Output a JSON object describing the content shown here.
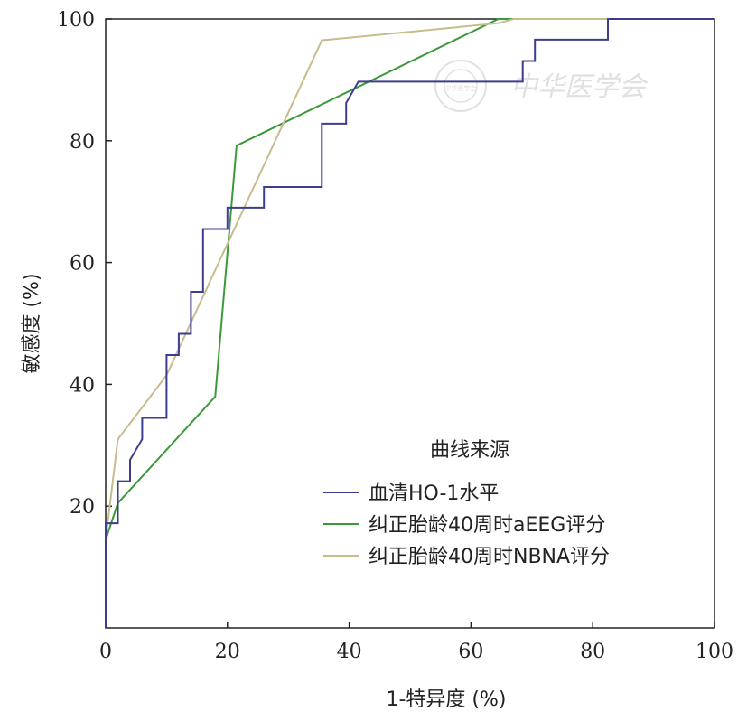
{
  "chart_data": {
    "type": "line",
    "title": "",
    "xlabel": "1-特异度 (%)",
    "ylabel": "敏感度 (%)",
    "xlim": [
      0,
      100
    ],
    "ylim": [
      0,
      100
    ],
    "x_ticks": [
      "0",
      "20",
      "40",
      "60",
      "80",
      "100"
    ],
    "y_ticks": [
      "20",
      "40",
      "60",
      "80",
      "100"
    ],
    "grid": false,
    "legend": {
      "title": "曲线来源",
      "position": "bottom-right"
    },
    "series": [
      {
        "name": "血清HO-1水平",
        "color": "#3d3d8f",
        "step": true,
        "points": [
          [
            0,
            0
          ],
          [
            0,
            17.2
          ],
          [
            2,
            17.2
          ],
          [
            2,
            24.1
          ],
          [
            4,
            24.1
          ],
          [
            4,
            27.6
          ],
          [
            6,
            31
          ],
          [
            6,
            34.5
          ],
          [
            10,
            34.5
          ],
          [
            10,
            44.8
          ],
          [
            12,
            44.8
          ],
          [
            12,
            48.3
          ],
          [
            14,
            48.3
          ],
          [
            14,
            55.2
          ],
          [
            16,
            55.2
          ],
          [
            16,
            65.5
          ],
          [
            20,
            65.5
          ],
          [
            20,
            69
          ],
          [
            26,
            69
          ],
          [
            26,
            72.4
          ],
          [
            35.5,
            72.4
          ],
          [
            35.5,
            82.8
          ],
          [
            39.5,
            82.8
          ],
          [
            39.5,
            86.2
          ],
          [
            41.5,
            89.7
          ],
          [
            68.5,
            89.7
          ],
          [
            68.5,
            93.1
          ],
          [
            70.5,
            93.1
          ],
          [
            70.5,
            96.6
          ],
          [
            82.5,
            96.6
          ],
          [
            82.5,
            100
          ],
          [
            100,
            100
          ]
        ]
      },
      {
        "name": "纠正胎龄40周时aEEG评分",
        "color": "#3a9a3a",
        "step": false,
        "points": [
          [
            0,
            14.5
          ],
          [
            2,
            20.5
          ],
          [
            18,
            38
          ],
          [
            21.5,
            79.2
          ],
          [
            64.5,
            100
          ],
          [
            100,
            100
          ]
        ]
      },
      {
        "name": "纠正胎龄40周时NBNA评分",
        "color": "#c8bb8c",
        "step": false,
        "points": [
          [
            0,
            14.5
          ],
          [
            2,
            31
          ],
          [
            10,
            41.5
          ],
          [
            35.5,
            96.5
          ],
          [
            64.5,
            99.3
          ],
          [
            67,
            100
          ],
          [
            100,
            100
          ]
        ]
      }
    ]
  },
  "watermark": {
    "text": "中华医学会",
    "seal_text": "中华医学会"
  }
}
